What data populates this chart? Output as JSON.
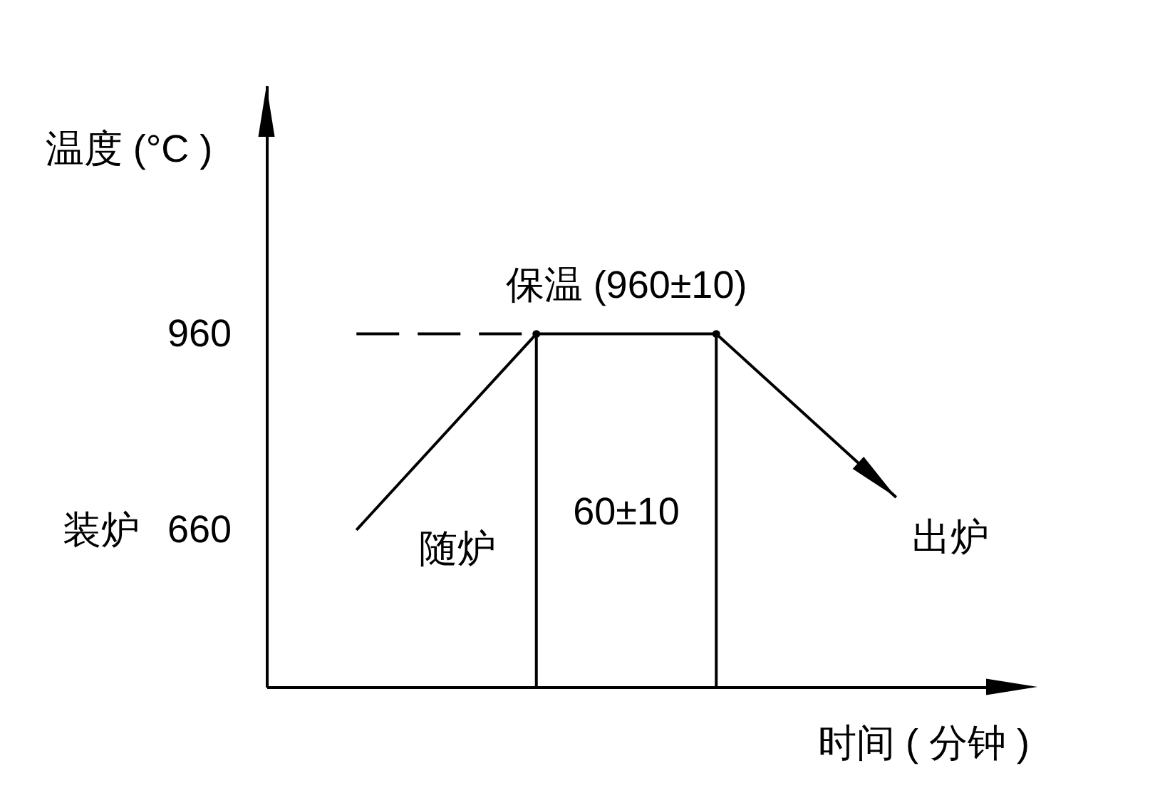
{
  "chart_data": {
    "type": "line",
    "xlabel": "时间 ( 分钟 )",
    "ylabel": "温度 (°C )",
    "categories": [
      null,
      null,
      null,
      null
    ],
    "ylim": [
      420,
      1340
    ],
    "yticks": [
      960,
      660
    ],
    "tick_labels": "y",
    "marker": "none",
    "series": [
      {
        "color": "#000000",
        "values": [
          660,
          960,
          960,
          710
        ]
      },
      {
        "color": "#000000",
        "line_style": "dashed",
        "values": [
          960,
          960,
          null,
          null
        ]
      },
      {
        "type": "lollipop",
        "color": "#000000",
        "marker": "circle",
        "values": [
          null,
          960,
          960,
          null
        ]
      }
    ],
    "annotations": [
      "保温 (960±10)",
      "装炉",
      "60±10",
      "随炉",
      "出炉"
    ]
  }
}
